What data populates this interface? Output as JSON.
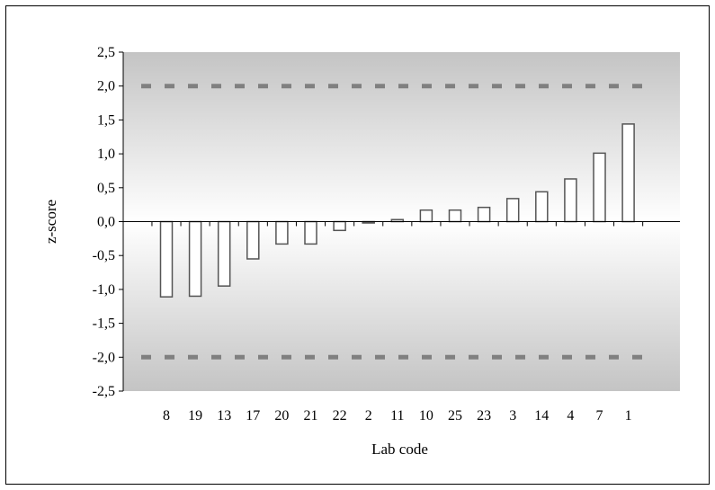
{
  "chart_data": {
    "type": "bar",
    "categories": [
      "8",
      "19",
      "13",
      "17",
      "20",
      "21",
      "22",
      "2",
      "11",
      "10",
      "25",
      "23",
      "3",
      "14",
      "4",
      "7",
      "1"
    ],
    "values": [
      -1.11,
      -1.1,
      -0.95,
      -0.55,
      -0.33,
      -0.33,
      -0.13,
      -0.02,
      0.03,
      0.17,
      0.17,
      0.21,
      0.34,
      0.44,
      0.63,
      1.01,
      1.44
    ],
    "xlabel": "Lab code",
    "ylabel": "z-score",
    "ylim": [
      -2.5,
      2.5
    ],
    "yticks": [
      2.5,
      2.0,
      1.5,
      1.0,
      0.5,
      0.0,
      -0.5,
      -1.0,
      -1.5,
      -2.0,
      -2.5
    ],
    "ytick_labels": [
      "2,5",
      "2,0",
      "1,5",
      "1,0",
      "0,5",
      "0,0",
      "-0,5",
      "-1,0",
      "-1,5",
      "-2,0",
      "-2,5"
    ],
    "reference_lines": [
      2.0,
      -2.0
    ],
    "grid": false,
    "legend": "none",
    "colors": {
      "bar_fill": "#ffffff",
      "bar_stroke": "#555555",
      "plot_edge": "#c4c4c4",
      "plot_center": "#ffffff",
      "reference_line": "#808080"
    }
  }
}
